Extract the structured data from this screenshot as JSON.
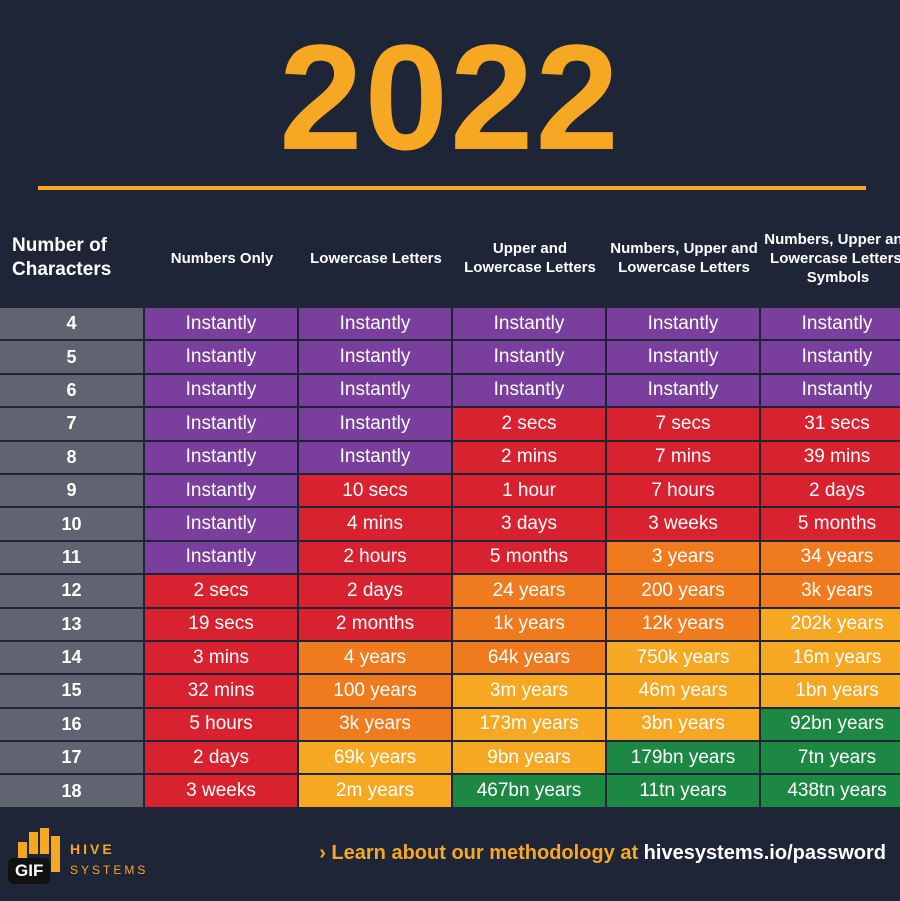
{
  "title": "2022",
  "colors": {
    "P": "#7a3e9d",
    "R": "#d8222f",
    "O": "#f07b1f",
    "Y": "#f7a823",
    "G": "#1d8744",
    "background": "#1e2537"
  },
  "headers": [
    "Number of Characters",
    "Numbers Only",
    "Lowercase Letters",
    "Upper and Lowercase Letters",
    "Numbers, Upper and Lowercase Letters",
    "Numbers, Upper and Lowercase Letters, Symbols"
  ],
  "rows": [
    {
      "n": "4",
      "cells": [
        [
          "Instantly",
          "P"
        ],
        [
          "Instantly",
          "P"
        ],
        [
          "Instantly",
          "P"
        ],
        [
          "Instantly",
          "P"
        ],
        [
          "Instantly",
          "P"
        ]
      ]
    },
    {
      "n": "5",
      "cells": [
        [
          "Instantly",
          "P"
        ],
        [
          "Instantly",
          "P"
        ],
        [
          "Instantly",
          "P"
        ],
        [
          "Instantly",
          "P"
        ],
        [
          "Instantly",
          "P"
        ]
      ]
    },
    {
      "n": "6",
      "cells": [
        [
          "Instantly",
          "P"
        ],
        [
          "Instantly",
          "P"
        ],
        [
          "Instantly",
          "P"
        ],
        [
          "Instantly",
          "P"
        ],
        [
          "Instantly",
          "P"
        ]
      ]
    },
    {
      "n": "7",
      "cells": [
        [
          "Instantly",
          "P"
        ],
        [
          "Instantly",
          "P"
        ],
        [
          "2 secs",
          "R"
        ],
        [
          "7 secs",
          "R"
        ],
        [
          "31 secs",
          "R"
        ]
      ]
    },
    {
      "n": "8",
      "cells": [
        [
          "Instantly",
          "P"
        ],
        [
          "Instantly",
          "P"
        ],
        [
          "2 mins",
          "R"
        ],
        [
          "7 mins",
          "R"
        ],
        [
          "39 mins",
          "R"
        ]
      ]
    },
    {
      "n": "9",
      "cells": [
        [
          "Instantly",
          "P"
        ],
        [
          "10 secs",
          "R"
        ],
        [
          "1 hour",
          "R"
        ],
        [
          "7 hours",
          "R"
        ],
        [
          "2 days",
          "R"
        ]
      ]
    },
    {
      "n": "10",
      "cells": [
        [
          "Instantly",
          "P"
        ],
        [
          "4 mins",
          "R"
        ],
        [
          "3 days",
          "R"
        ],
        [
          "3 weeks",
          "R"
        ],
        [
          "5 months",
          "R"
        ]
      ]
    },
    {
      "n": "11",
      "cells": [
        [
          "Instantly",
          "P"
        ],
        [
          "2 hours",
          "R"
        ],
        [
          "5 months",
          "R"
        ],
        [
          "3 years",
          "O"
        ],
        [
          "34 years",
          "O"
        ]
      ]
    },
    {
      "n": "12",
      "cells": [
        [
          "2 secs",
          "R"
        ],
        [
          "2 days",
          "R"
        ],
        [
          "24 years",
          "O"
        ],
        [
          "200 years",
          "O"
        ],
        [
          "3k years",
          "O"
        ]
      ]
    },
    {
      "n": "13",
      "cells": [
        [
          "19 secs",
          "R"
        ],
        [
          "2 months",
          "R"
        ],
        [
          "1k years",
          "O"
        ],
        [
          "12k years",
          "O"
        ],
        [
          "202k years",
          "Y"
        ]
      ]
    },
    {
      "n": "14",
      "cells": [
        [
          "3 mins",
          "R"
        ],
        [
          "4 years",
          "O"
        ],
        [
          "64k years",
          "O"
        ],
        [
          "750k years",
          "Y"
        ],
        [
          "16m years",
          "Y"
        ]
      ]
    },
    {
      "n": "15",
      "cells": [
        [
          "32 mins",
          "R"
        ],
        [
          "100 years",
          "O"
        ],
        [
          "3m years",
          "Y"
        ],
        [
          "46m years",
          "Y"
        ],
        [
          "1bn years",
          "Y"
        ]
      ]
    },
    {
      "n": "16",
      "cells": [
        [
          "5 hours",
          "R"
        ],
        [
          "3k years",
          "O"
        ],
        [
          "173m years",
          "Y"
        ],
        [
          "3bn years",
          "Y"
        ],
        [
          "92bn years",
          "G"
        ]
      ]
    },
    {
      "n": "17",
      "cells": [
        [
          "2 days",
          "R"
        ],
        [
          "69k years",
          "Y"
        ],
        [
          "9bn years",
          "Y"
        ],
        [
          "179bn years",
          "G"
        ],
        [
          "7tn years",
          "G"
        ]
      ]
    },
    {
      "n": "18",
      "cells": [
        [
          "3 weeks",
          "R"
        ],
        [
          "2m years",
          "Y"
        ],
        [
          "467bn years",
          "G"
        ],
        [
          "11tn years",
          "G"
        ],
        [
          "438tn years",
          "G"
        ]
      ]
    }
  ],
  "footer": {
    "logo": "HIVE SYSTEMS",
    "learn": "› Learn about our methodology at",
    "url": "hivesystems.io/password",
    "badge": "GIF"
  }
}
